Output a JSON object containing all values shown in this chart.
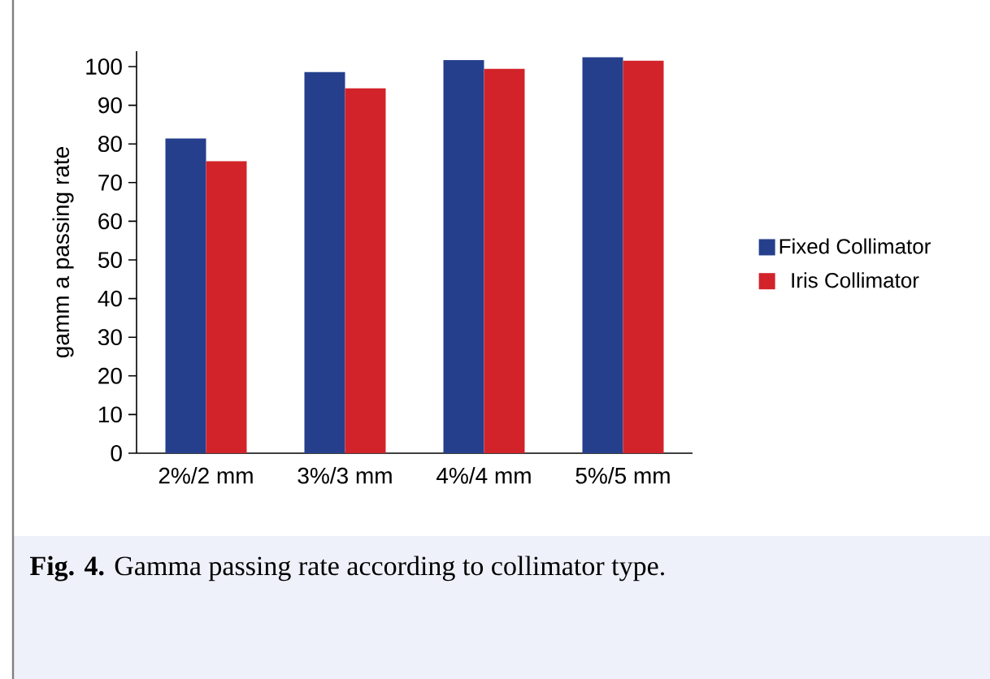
{
  "chart_data": {
    "type": "bar",
    "categories": [
      "2%/2 mm",
      "3%/3 mm",
      "4%/4 mm",
      "5%/5 mm"
    ],
    "series": [
      {
        "name": "Fixed Collimator",
        "color": "#253f8c",
        "values": [
          81.4,
          98.6,
          101.7,
          102.4
        ]
      },
      {
        "name": "Iris Collimator",
        "color": "#d2232a",
        "values": [
          75.5,
          94.4,
          99.4,
          101.5
        ]
      }
    ],
    "ylabel": "gamm a passing rate",
    "ylim": [
      0,
      104
    ],
    "yticks": [
      0,
      10,
      20,
      30,
      40,
      50,
      60,
      70,
      80,
      90,
      100
    ],
    "grid": false,
    "legend": "right",
    "annotations": [
      "**Fig. 4.** Gamma passing rate according to collimator type."
    ]
  }
}
